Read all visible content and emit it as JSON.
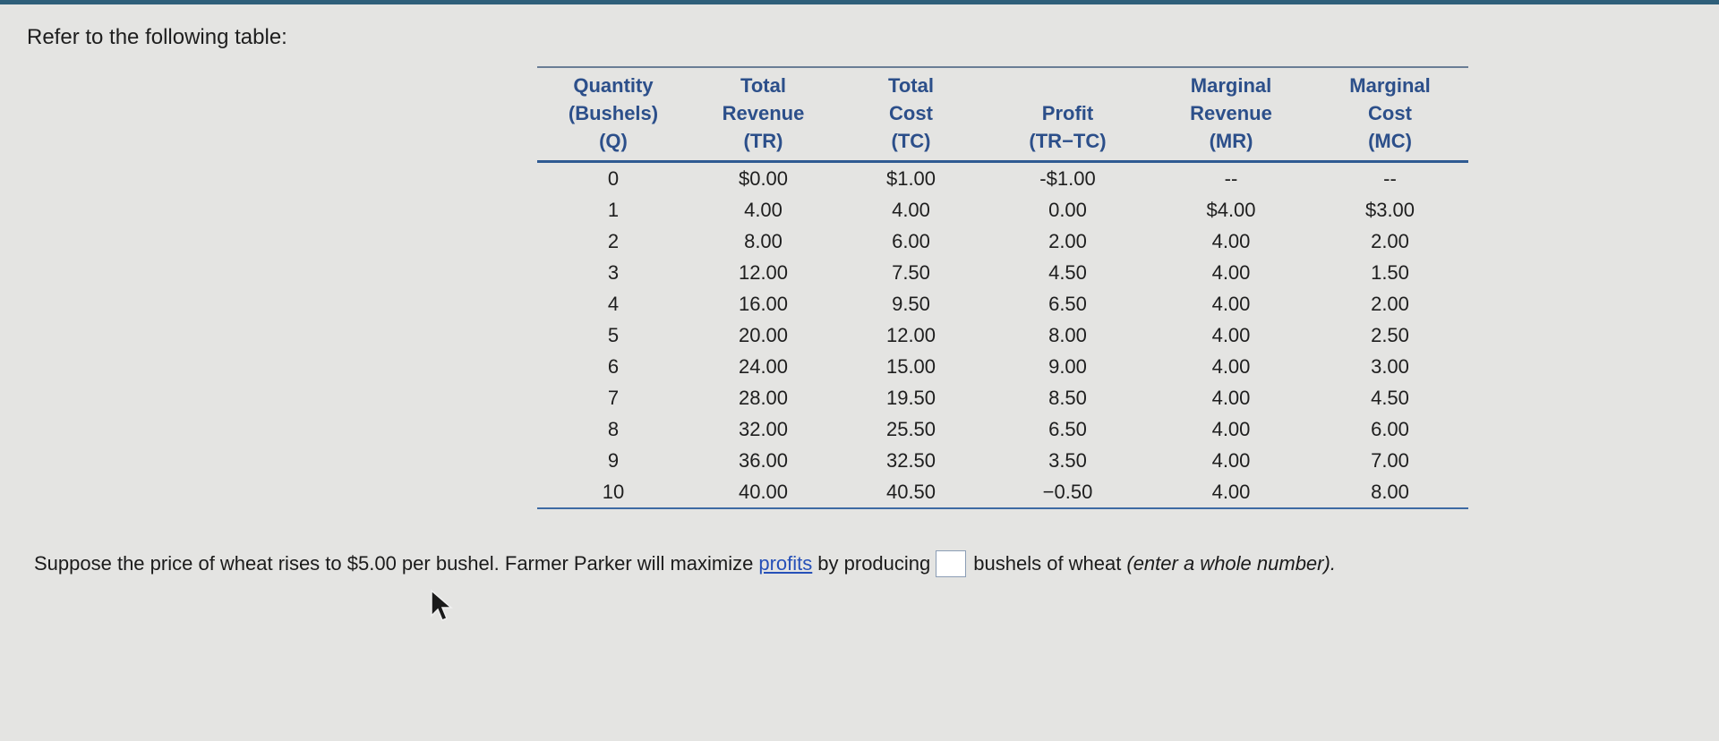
{
  "intro": "Refer to the following table:",
  "table": {
    "headers": [
      [
        "Quantity",
        "(Bushels)",
        "(Q)"
      ],
      [
        "Total",
        "Revenue",
        "(TR)"
      ],
      [
        "Total",
        "Cost",
        "(TC)"
      ],
      [
        "Profit",
        "(TR−TC)"
      ],
      [
        "Marginal",
        "Revenue",
        "(MR)"
      ],
      [
        "Marginal",
        "Cost",
        "(MC)"
      ]
    ],
    "rows": [
      [
        "0",
        "$0.00",
        "$1.00",
        "-$1.00",
        "--",
        "--"
      ],
      [
        "1",
        "4.00",
        "4.00",
        "0.00",
        "$4.00",
        "$3.00"
      ],
      [
        "2",
        "8.00",
        "6.00",
        "2.00",
        "4.00",
        "2.00"
      ],
      [
        "3",
        "12.00",
        "7.50",
        "4.50",
        "4.00",
        "1.50"
      ],
      [
        "4",
        "16.00",
        "9.50",
        "6.50",
        "4.00",
        "2.00"
      ],
      [
        "5",
        "20.00",
        "12.00",
        "8.00",
        "4.00",
        "2.50"
      ],
      [
        "6",
        "24.00",
        "15.00",
        "9.00",
        "4.00",
        "3.00"
      ],
      [
        "7",
        "28.00",
        "19.50",
        "8.50",
        "4.00",
        "4.50"
      ],
      [
        "8",
        "32.00",
        "25.50",
        "6.50",
        "4.00",
        "6.00"
      ],
      [
        "9",
        "36.00",
        "32.50",
        "3.50",
        "4.00",
        "7.00"
      ],
      [
        "10",
        "40.00",
        "40.50",
        "−0.50",
        "4.00",
        "8.00"
      ]
    ]
  },
  "question": {
    "before": "Suppose the price of wheat rises to $5.00 per bushel.  Farmer Parker will maximize",
    "link": "profits",
    "middle": "by producing",
    "answer_value": "",
    "after": "bushels of wheat",
    "hint": "(enter a whole number)."
  },
  "colors": {
    "header_text": "#2c4f8a",
    "link": "#2650b8",
    "top_bar": "#2e5f7a"
  },
  "icons": {
    "cursor": "mouse-pointer-icon"
  }
}
